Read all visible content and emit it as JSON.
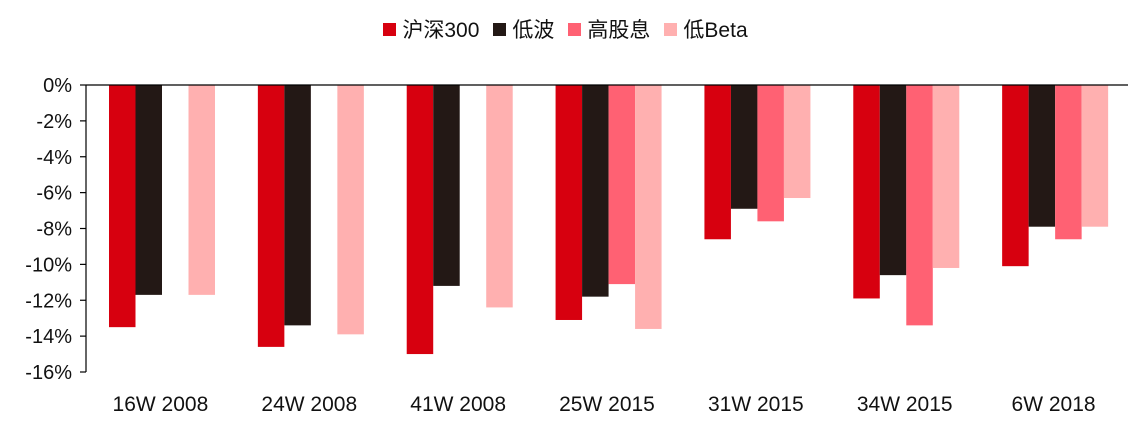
{
  "chart_data": {
    "type": "bar",
    "categories": [
      "16W 2008",
      "24W 2008",
      "41W 2008",
      "25W 2015",
      "31W 2015",
      "34W 2015",
      "6W 2018"
    ],
    "series": [
      {
        "name": "沪深300",
        "color": "#D7000F",
        "values": [
          -13.5,
          -14.6,
          -15.0,
          -13.1,
          -8.6,
          -11.9,
          -10.1
        ]
      },
      {
        "name": "低波",
        "color": "#231815",
        "values": [
          -11.7,
          -13.4,
          -11.2,
          -11.8,
          -6.9,
          -10.6,
          -7.9
        ]
      },
      {
        "name": "高股息",
        "color": "#FF6173",
        "values": [
          null,
          null,
          null,
          -11.1,
          -7.6,
          -13.4,
          -8.6
        ]
      },
      {
        "name": "低Beta",
        "color": "#FFB0B0",
        "values": [
          -11.7,
          -13.9,
          -12.4,
          -13.6,
          -6.3,
          -10.2,
          -7.9
        ]
      }
    ],
    "ylim": [
      -16,
      0
    ],
    "yticks": [
      0,
      -2,
      -4,
      -6,
      -8,
      -10,
      -12,
      -14,
      -16
    ],
    "ytick_labels": [
      "0%",
      "-2%",
      "-4%",
      "-6%",
      "-8%",
      "-10%",
      "-12%",
      "-14%",
      "-16%"
    ],
    "legend_position": "top-center",
    "grid": false
  }
}
